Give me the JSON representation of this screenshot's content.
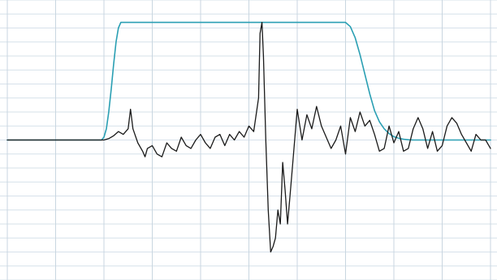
{
  "chart_data": {
    "type": "line",
    "title": "",
    "xlabel": "",
    "ylabel": "",
    "grid": true,
    "xlim": [
      0,
      100
    ],
    "ylim": [
      -50,
      50
    ],
    "x_gridlines": [
      0,
      10,
      20,
      30,
      40,
      50,
      60,
      70,
      80,
      90,
      100
    ],
    "y_gridlines": [
      -50,
      -45,
      -40,
      -35,
      -30,
      -25,
      -20,
      -15,
      -10,
      -5,
      0,
      5,
      10,
      15,
      20,
      25,
      30,
      35,
      40,
      45,
      50
    ],
    "series": [
      {
        "color": "#2a9fb3",
        "x": [
          0,
          19.5,
          20,
          20.5,
          21,
          21.5,
          22,
          22.5,
          23,
          23.5,
          24,
          70,
          71,
          72,
          73,
          74,
          75,
          76,
          77,
          78,
          79,
          80,
          81,
          82,
          83,
          84,
          85,
          100
        ],
        "y": [
          0,
          0,
          1,
          4,
          10,
          18,
          27,
          35,
          40,
          42,
          42,
          42,
          40.5,
          36.5,
          30.5,
          23.5,
          16.5,
          10.5,
          6.5,
          4,
          2.3,
          1.2,
          0.6,
          0.3,
          0.1,
          0,
          0,
          0
        ]
      },
      {
        "color": "#1a1a1a",
        "x": [
          0,
          20,
          21,
          22,
          23,
          24,
          25,
          25.5,
          26,
          27,
          28,
          28.5,
          29,
          30,
          31,
          32,
          33,
          34,
          35,
          36,
          37,
          38,
          39,
          40,
          41,
          42,
          43,
          44,
          45,
          46,
          47,
          48,
          49,
          50,
          51,
          52,
          52.3,
          52.7,
          53,
          53.5,
          54,
          54.5,
          55,
          55.5,
          56,
          56.5,
          57,
          57.5,
          58,
          58.5,
          59,
          60,
          61,
          62,
          63,
          64,
          65,
          66,
          67,
          68,
          69,
          70,
          71,
          72,
          73,
          74,
          75,
          76,
          77,
          78,
          79,
          80,
          81,
          82,
          83,
          84,
          85,
          86,
          87,
          88,
          89,
          90,
          91,
          92,
          93,
          94,
          95,
          96,
          97,
          98,
          99,
          100
        ],
        "y": [
          0,
          0,
          0.5,
          1.5,
          3,
          2,
          4,
          11,
          4,
          -1,
          -4,
          -6,
          -3,
          -2,
          -5,
          -6,
          -1,
          -3,
          -4,
          1,
          -2,
          -3,
          0,
          2,
          -1,
          -3,
          1,
          2,
          -2,
          2,
          0,
          3,
          1,
          5,
          3,
          15,
          38,
          42,
          30,
          0,
          -25,
          -40,
          -38,
          -35,
          -25,
          -30,
          -8,
          -18,
          -30,
          -20,
          -10,
          11,
          0,
          9,
          4,
          12,
          5,
          1,
          -3,
          0,
          5,
          -5,
          8,
          3,
          10,
          5,
          7,
          2,
          -4,
          -3,
          5,
          -1,
          3,
          -4,
          -3,
          4,
          8,
          4,
          -3,
          3,
          -4,
          -2,
          5,
          8,
          6,
          2,
          -1,
          -4,
          2,
          0,
          0,
          -3
        ]
      }
    ]
  }
}
